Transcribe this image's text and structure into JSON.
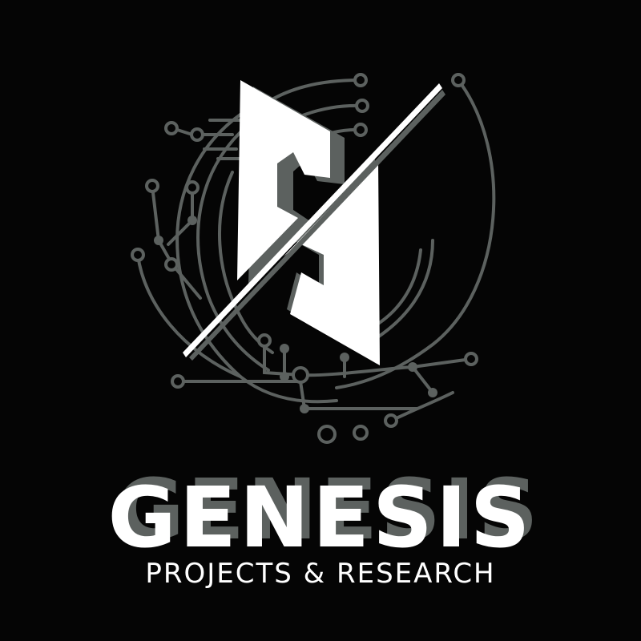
{
  "brand": {
    "name": "GENESIS",
    "tagline": "PROJECTS & RESEARCH"
  },
  "colors": {
    "background": "#050505",
    "foreground": "#ffffff",
    "circuit": "#5c615f"
  },
  "icons": [
    "logo-s-mark-icon",
    "circuit-pattern-icon"
  ]
}
